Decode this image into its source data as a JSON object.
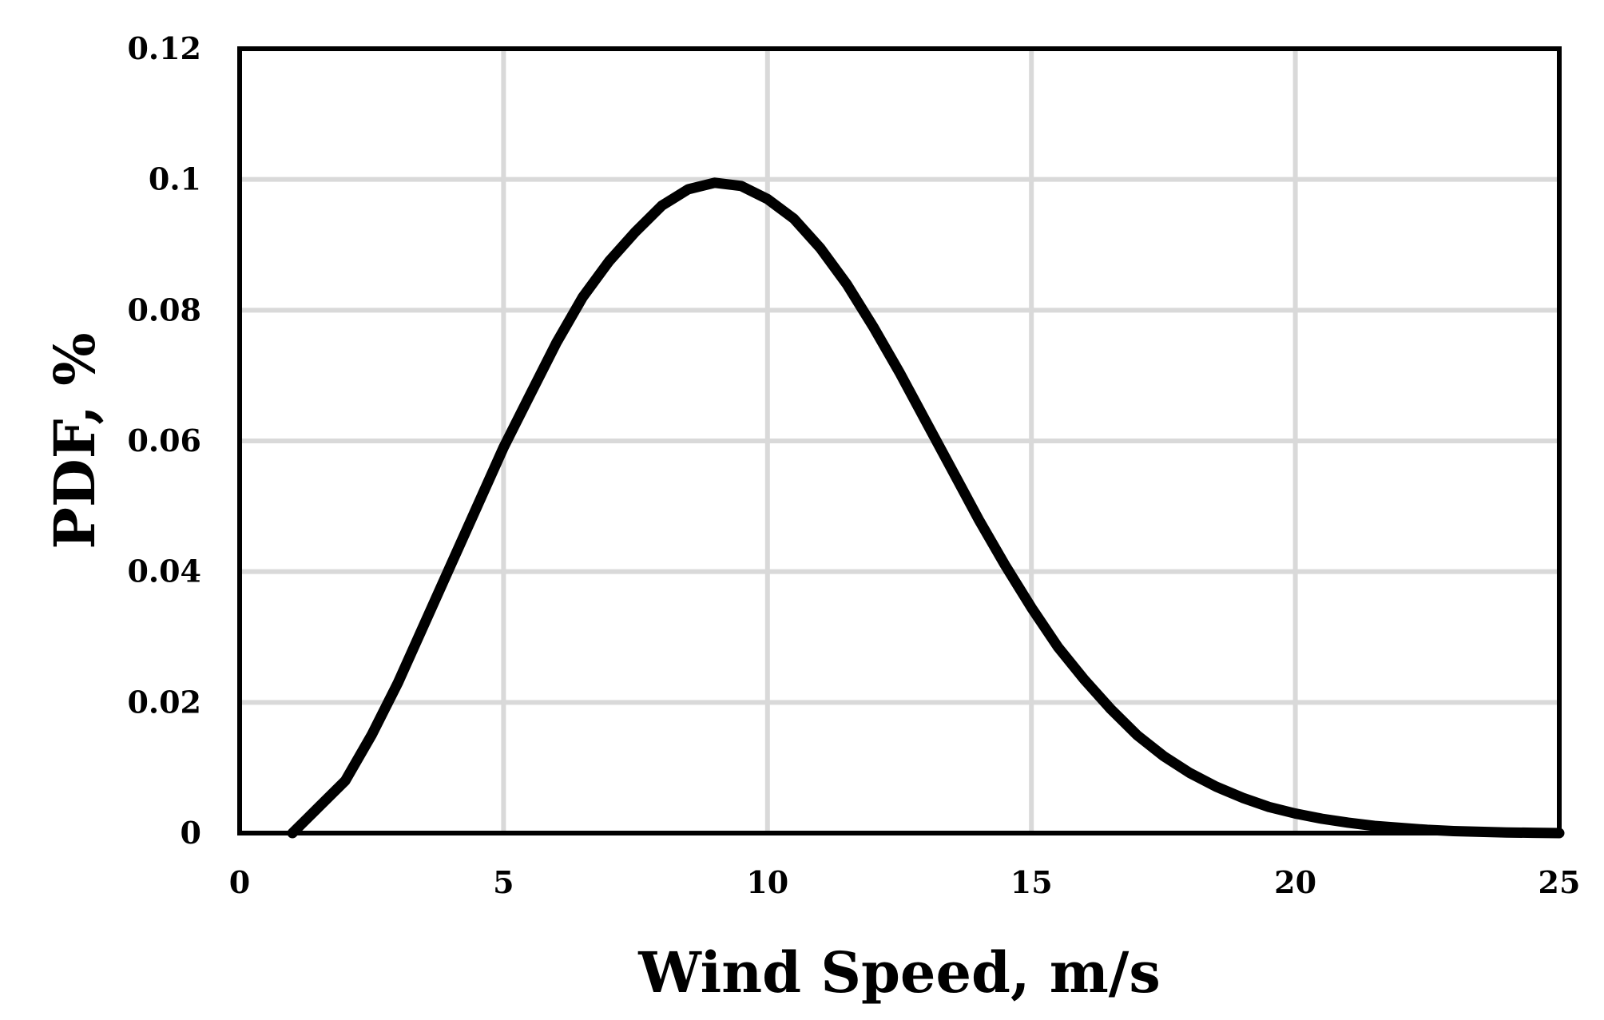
{
  "chart_data": {
    "type": "line",
    "title": "",
    "xlabel": "Wind Speed, m/s",
    "ylabel": "PDF, %",
    "xlim": [
      0,
      25
    ],
    "ylim": [
      0,
      0.12
    ],
    "xticks": [
      "0",
      "5",
      "10",
      "15",
      "20",
      "25"
    ],
    "yticks": [
      "0",
      "0.02",
      "0.04",
      "0.06",
      "0.08",
      "0.1",
      "0.12"
    ],
    "grid": true,
    "legend": "none",
    "colors": {
      "line": "#000000",
      "grid": "#d9d9d9",
      "frame": "#000000"
    },
    "series": [
      {
        "x": [
          1,
          1.5,
          2,
          2.5,
          3,
          3.5,
          4,
          4.5,
          5,
          5.5,
          6,
          6.5,
          7,
          7.5,
          8,
          8.5,
          9,
          9.5,
          10,
          10.5,
          11,
          11.5,
          12,
          12.5,
          13,
          13.5,
          14,
          14.5,
          15,
          15.5,
          16,
          16.5,
          17,
          17.5,
          18,
          18.5,
          19,
          19.5,
          20,
          20.5,
          21,
          21.5,
          22,
          22.5,
          23,
          23.5,
          24,
          24.5,
          25
        ],
        "y": [
          0,
          0.004,
          0.008,
          0.015,
          0.023,
          0.032,
          0.041,
          0.05,
          0.059,
          0.067,
          0.075,
          0.082,
          0.0875,
          0.092,
          0.096,
          0.0985,
          0.0995,
          0.099,
          0.097,
          0.094,
          0.0895,
          0.084,
          0.0775,
          0.0705,
          0.063,
          0.0555,
          0.048,
          0.041,
          0.0345,
          0.0285,
          0.0235,
          0.019,
          0.015,
          0.0118,
          0.0092,
          0.0071,
          0.0054,
          0.004,
          0.003,
          0.0022,
          0.0016,
          0.0011,
          0.0008,
          0.0005,
          0.0003,
          0.0002,
          0.0001,
          5e-05,
          0
        ]
      }
    ]
  }
}
